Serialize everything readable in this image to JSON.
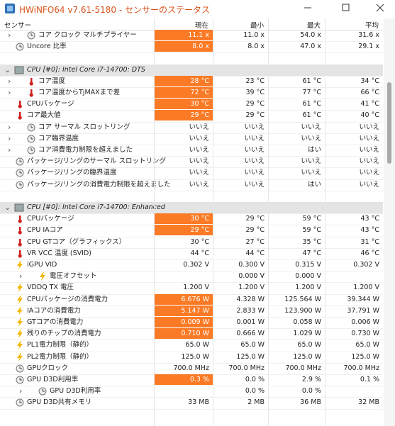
{
  "title": "HWiNFO64 v7.61-5180 - センサーのステータス",
  "columns": [
    "センサー",
    "現在",
    "最小",
    "最大",
    "平均"
  ],
  "highlight_color": "#fb7a25",
  "sections": [
    {
      "rows": [
        {
          "name": "コア クロック マルチプライヤー",
          "icon": "clock",
          "expandable": true,
          "highlight": true,
          "values": [
            "11.1 x",
            "11.0 x",
            "54.0 x",
            "31.6 x"
          ]
        },
        {
          "name": "Uncore 比率",
          "icon": "clock",
          "highlight": true,
          "values": [
            "8.0 x",
            "8.0 x",
            "47.0 x",
            "29.1 x"
          ]
        }
      ]
    },
    {
      "title": "CPU [#0]: Intel Core i7-14700: DTS",
      "rows": [
        {
          "name": "コア温度",
          "icon": "temp",
          "expandable": true,
          "highlight": true,
          "values": [
            "28 °C",
            "23 °C",
            "61 °C",
            "34 °C"
          ]
        },
        {
          "name": "コア温度からTjMAXまで差",
          "icon": "temp",
          "expandable": true,
          "highlight": true,
          "values": [
            "72 °C",
            "39 °C",
            "77 °C",
            "66 °C"
          ]
        },
        {
          "name": "CPUパッケージ",
          "icon": "temp",
          "highlight": true,
          "values": [
            "30 °C",
            "29 °C",
            "61 °C",
            "41 °C"
          ]
        },
        {
          "name": "コア最大値",
          "icon": "temp",
          "highlight": true,
          "values": [
            "29 °C",
            "29 °C",
            "61 °C",
            "40 °C"
          ]
        },
        {
          "name": "コア サーマル スロットリング",
          "icon": "clock",
          "expandable": true,
          "values": [
            "いいえ",
            "いいえ",
            "いいえ",
            "いいえ"
          ]
        },
        {
          "name": "コア臨界温度",
          "icon": "clock",
          "expandable": true,
          "values": [
            "いいえ",
            "いいえ",
            "いいえ",
            "いいえ"
          ]
        },
        {
          "name": "コア消費電力制限を超えました",
          "icon": "clock",
          "expandable": true,
          "values": [
            "いいえ",
            "いいえ",
            "はい",
            "いいえ"
          ]
        },
        {
          "name": "パッケージ/リングのサーマル スロットリング",
          "icon": "clock",
          "values": [
            "いいえ",
            "いいえ",
            "いいえ",
            "いいえ"
          ]
        },
        {
          "name": "パッケージ/リングの臨界温度",
          "icon": "clock",
          "values": [
            "いいえ",
            "いいえ",
            "いいえ",
            "いいえ"
          ]
        },
        {
          "name": "パッケージ/リングの消費電力制限を超えました",
          "icon": "clock",
          "values": [
            "いいえ",
            "いいえ",
            "はい",
            "いいえ"
          ]
        }
      ]
    },
    {
      "title": "CPU [#0]: Intel Core i7-14700: Enhanced",
      "rows": [
        {
          "name": "CPUパッケージ",
          "icon": "temp",
          "highlight": true,
          "values": [
            "30 °C",
            "29 °C",
            "59 °C",
            "43 °C"
          ]
        },
        {
          "name": "CPU IAコア",
          "icon": "temp",
          "highlight": true,
          "values": [
            "29 °C",
            "29 °C",
            "59 °C",
            "43 °C"
          ]
        },
        {
          "name": "CPU GTコア（グラフィックス）",
          "icon": "temp",
          "values": [
            "30 °C",
            "27 °C",
            "35 °C",
            "31 °C"
          ]
        },
        {
          "name": "VR VCC 温度 (SVID)",
          "icon": "temp",
          "values": [
            "44 °C",
            "44 °C",
            "47 °C",
            "46 °C"
          ]
        },
        {
          "name": "iGPU VID",
          "icon": "volt",
          "values": [
            "0.302 V",
            "0.300 V",
            "0.315 V",
            "0.302 V"
          ]
        },
        {
          "name": "電圧オフセット",
          "icon": "volt",
          "expandable": true,
          "indent": 1,
          "values": [
            null,
            "0.000 V",
            "0.000 V",
            null
          ]
        },
        {
          "name": "VDDQ TX 電圧",
          "icon": "volt",
          "values": [
            "1.200 V",
            "1.200 V",
            "1.200 V",
            "1.200 V"
          ]
        },
        {
          "name": "CPUパッケージの消費電力",
          "icon": "volt",
          "highlight": true,
          "values": [
            "6.676 W",
            "4.328 W",
            "125.564 W",
            "39.344 W"
          ]
        },
        {
          "name": "IAコアの消費電力",
          "icon": "volt",
          "highlight": true,
          "values": [
            "5.147 W",
            "2.833 W",
            "123.900 W",
            "37.791 W"
          ]
        },
        {
          "name": "GTコアの消費電力",
          "icon": "volt",
          "highlight": true,
          "values": [
            "0.009 W",
            "0.001 W",
            "0.058 W",
            "0.006 W"
          ]
        },
        {
          "name": "残りのチップの消費電力",
          "icon": "volt",
          "highlight": true,
          "values": [
            "0.710 W",
            "0.666 W",
            "1.029 W",
            "0.730 W"
          ]
        },
        {
          "name": "PL1電力制限（静的）",
          "icon": "volt",
          "values": [
            "65.0 W",
            "65.0 W",
            "65.0 W",
            "65.0 W"
          ]
        },
        {
          "name": "PL2電力制限（静的）",
          "icon": "volt",
          "values": [
            "125.0 W",
            "125.0 W",
            "125.0 W",
            "125.0 W"
          ]
        },
        {
          "name": "GPUクロック",
          "icon": "clock",
          "values": [
            "700.0 MHz",
            "700.0 MHz",
            "700.0 MHz",
            "700.0 MHz"
          ]
        },
        {
          "name": "GPU D3D利用率",
          "icon": "clock",
          "highlight": true,
          "values": [
            "0.3 %",
            "0.0 %",
            "2.9 %",
            "0.1 %"
          ]
        },
        {
          "name": "GPU D3D利用率",
          "icon": "clock",
          "expandable": true,
          "indent": 1,
          "values": [
            null,
            "0.0 %",
            "0.0 %",
            null
          ]
        },
        {
          "name": "GPU D3D共有メモリ",
          "icon": "clock",
          "values": [
            "33 MB",
            "2 MB",
            "36 MB",
            "32 MB"
          ]
        }
      ]
    }
  ]
}
